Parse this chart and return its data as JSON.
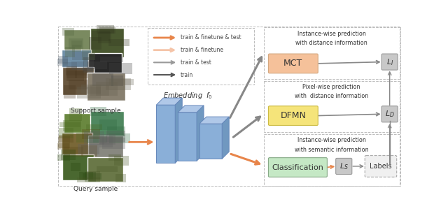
{
  "figsize": [
    6.4,
    3.02
  ],
  "dpi": 100,
  "bg_color": "#ffffff",
  "legend_items": [
    {
      "label": "train & finetune & test",
      "color": "#E8854A",
      "alpha": 1.0
    },
    {
      "label": "train & finetune",
      "color": "#F5C4A8",
      "alpha": 1.0
    },
    {
      "label": "train & test",
      "color": "#999999",
      "alpha": 1.0
    },
    {
      "label": "train",
      "color": "#555555",
      "alpha": 1.0
    }
  ],
  "support_label": "Support sample",
  "query_label": "Query sample",
  "embedding_label": "Embedding  $f_0$",
  "mct_color": "#F5C19A",
  "dfmn_color": "#F5E47A",
  "class_color": "#C5E8C5",
  "loss_color": "#C8C8C8",
  "mct_text": "MCT",
  "dfmn_text": "DFMN",
  "class_text": "Classification",
  "li_text": "$L_I$",
  "ld_text": "$L_D$",
  "ls_text": "$L_S$",
  "labels_text": "Labels",
  "top_desc": "Instance-wise prediction\nwith distance information",
  "mid_desc": "Pixel-wise prediction\nwith  distance information",
  "bot_desc": "Instance-wise prediction\nwith semantic information",
  "block_face": "#8AAFD8",
  "block_top": "#B0C8E8",
  "block_right": "#7098C0",
  "block_edge": "#6688BB"
}
